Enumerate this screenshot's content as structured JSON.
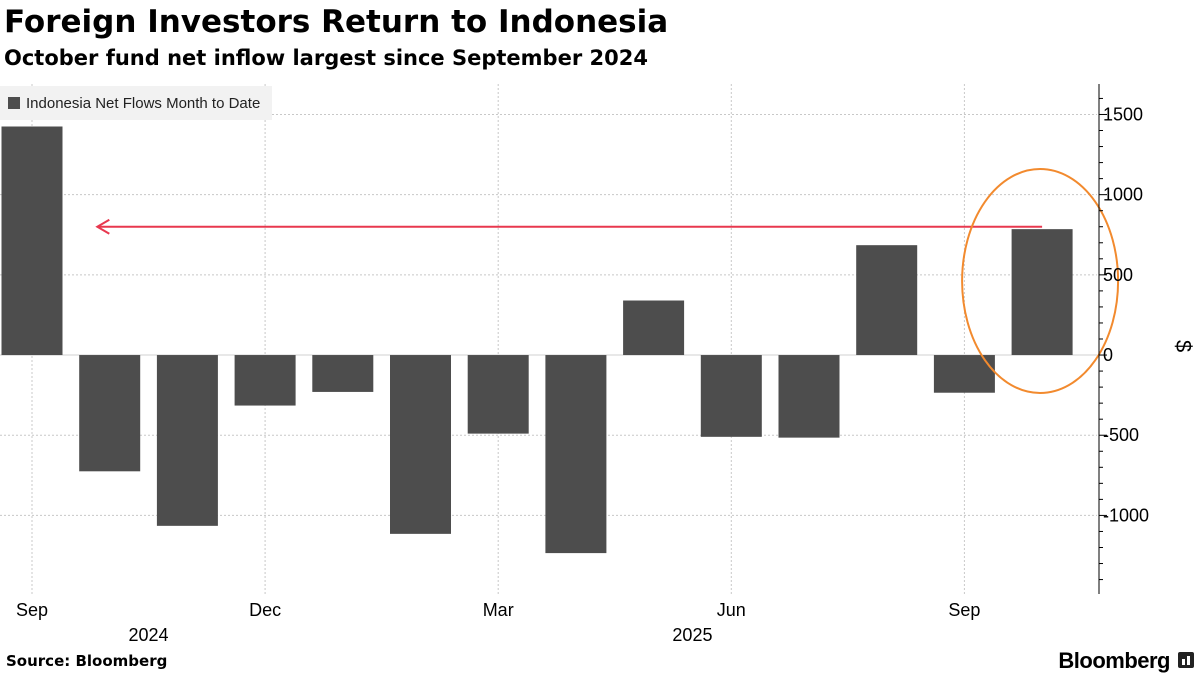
{
  "title": "Foreign Investors Return to Indonesia",
  "subtitle": "October fund net inflow largest since September 2024",
  "source": "Source: Bloomberg",
  "brand": "Bloomberg",
  "colors": {
    "bar": "#4d4d4d",
    "arrow": "#e8384f",
    "highlight": "#f28a2e",
    "grid": "#c8c8c8"
  },
  "chart_data": {
    "type": "bar",
    "legend": [
      "Indonesia Net Flows Month to Date"
    ],
    "legend_position": "top-left",
    "categories": [
      "Sep 2024",
      "Oct 2024",
      "Nov 2024",
      "Dec 2024",
      "Jan 2025",
      "Feb 2025",
      "Mar 2025",
      "Apr 2025",
      "May 2025",
      "Jun 2025",
      "Jul 2025",
      "Aug 2025",
      "Sep 2025",
      "Oct 2025"
    ],
    "series": [
      {
        "name": "Indonesia Net Flows Month to Date",
        "values": [
          1425,
          -725,
          -1065,
          -315,
          -230,
          -1115,
          -490,
          -1235,
          340,
          -510,
          -515,
          685,
          -235,
          785
        ]
      }
    ],
    "x_tick_labels": [
      {
        "label": "Sep",
        "index": 0
      },
      {
        "label": "Dec",
        "index": 3
      },
      {
        "label": "Mar",
        "index": 6
      },
      {
        "label": "Jun",
        "index": 9
      },
      {
        "label": "Sep",
        "index": 12
      }
    ],
    "x_year_labels": [
      {
        "label": "2024",
        "index": 1.5
      },
      {
        "label": "2025",
        "index": 8.5
      }
    ],
    "y_ticks": [
      1500,
      1000,
      500,
      0,
      -500,
      -1000
    ],
    "y_tick_labels": [
      "1500",
      "1000",
      "500",
      "0",
      "-500",
      "-1000"
    ],
    "ylabel": "$",
    "ylim": [
      -1490,
      1690
    ],
    "grid": true,
    "annotations": {
      "arrow_level": 800,
      "arrow_from_index": 13,
      "arrow_to_index": 0.95,
      "highlight_index": 13
    }
  }
}
